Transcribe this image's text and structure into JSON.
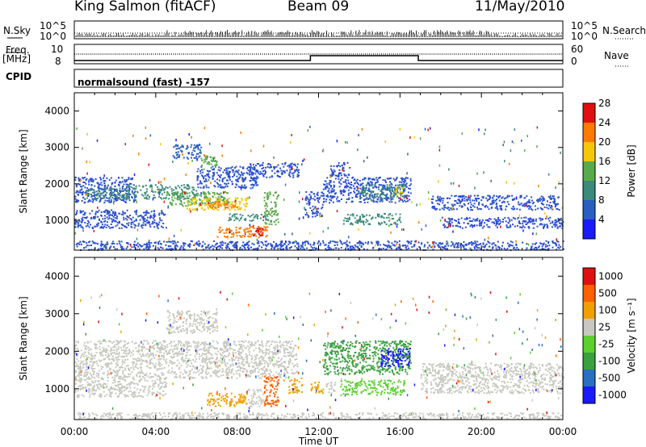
{
  "header": {
    "station": "King Salmon (fitACF)",
    "beam": "Beam 09",
    "date": "11/May/2010"
  },
  "top_panels": {
    "nsky_label": "N.Sky",
    "nsky_ticks": [
      "10^5",
      "10^0"
    ],
    "freq_label_1": "Freq.",
    "freq_label_2": "[MHz]",
    "freq_ticks": [
      "10",
      "8"
    ],
    "cpid_label": "CPID",
    "right_ticks_top": [
      "10^5",
      "10^0"
    ],
    "right_ticks_mid": [
      "60",
      "0"
    ],
    "nsearch_label": "N.Search",
    "nave_label": "Nave",
    "cpid_text": "normalsound (fast) -157",
    "freq_line": {
      "x": [
        0,
        11.6,
        11.6,
        16.9,
        16.9,
        24
      ],
      "levels": [
        "low",
        "low",
        "high",
        "high",
        "low",
        "low"
      ]
    }
  },
  "chart_data": [
    {
      "type": "heatmap",
      "title": "",
      "ylabel": "Slant Range [km]",
      "xlabel": "",
      "x_range": [
        0,
        24
      ],
      "ylim": [
        180,
        4500
      ],
      "yticks": [
        1000,
        2000,
        3000,
        4000
      ],
      "colorbar": {
        "label": "Power [dB]",
        "tick_labels": [
          "4",
          "8",
          "12",
          "16",
          "20",
          "24",
          "28"
        ],
        "colors": [
          "#1a1aff",
          "#2a5fc0",
          "#3b8a7a",
          "#5aaa4a",
          "#f5c60a",
          "#ff7a00",
          "#e01010"
        ]
      },
      "regions": [
        {
          "t0": 0.0,
          "t1": 3.0,
          "r0": 1500,
          "r1": 2200,
          "color": "#2a4fd0"
        },
        {
          "t0": 0.5,
          "t1": 2.5,
          "r0": 1600,
          "r1": 1900,
          "color": "#3b8a7a"
        },
        {
          "t0": 0.0,
          "t1": 4.5,
          "r0": 800,
          "r1": 1300,
          "color": "#2a4fd0"
        },
        {
          "t0": 2.5,
          "t1": 6.0,
          "r0": 1600,
          "r1": 2000,
          "color": "#3b8a7a"
        },
        {
          "t0": 4.5,
          "t1": 7.5,
          "r0": 1400,
          "r1": 1800,
          "color": "#5aaa4a"
        },
        {
          "t0": 5.5,
          "t1": 8.5,
          "r0": 1300,
          "r1": 1650,
          "color": "#f5c60a"
        },
        {
          "t0": 6.5,
          "t1": 8.0,
          "r0": 1350,
          "r1": 1550,
          "color": "#ff7a00"
        },
        {
          "t0": 6.0,
          "t1": 9.0,
          "r0": 1900,
          "r1": 2500,
          "color": "#2a4fd0"
        },
        {
          "t0": 4.8,
          "t1": 6.2,
          "r0": 2700,
          "r1": 3100,
          "color": "#2a5fc0"
        },
        {
          "t0": 6.2,
          "t1": 7.0,
          "r0": 2400,
          "r1": 2800,
          "color": "#5aaa4a"
        },
        {
          "t0": 8.5,
          "t1": 11.0,
          "r0": 2200,
          "r1": 2600,
          "color": "#2a4fd0"
        },
        {
          "t0": 7.5,
          "t1": 9.5,
          "r0": 1000,
          "r1": 1200,
          "color": "#3b8a7a"
        },
        {
          "t0": 7.0,
          "t1": 9.5,
          "r0": 550,
          "r1": 850,
          "color": "#ff7a00"
        },
        {
          "t0": 8.7,
          "t1": 9.3,
          "r0": 550,
          "r1": 800,
          "color": "#e01010"
        },
        {
          "t0": 9.3,
          "t1": 10.0,
          "r0": 900,
          "r1": 1800,
          "color": "#5aaa4a"
        },
        {
          "t0": 11.3,
          "t1": 12.2,
          "r0": 1100,
          "r1": 1800,
          "color": "#2a4fd0"
        },
        {
          "t0": 12.5,
          "t1": 13.5,
          "r0": 2200,
          "r1": 2600,
          "color": "#2a4fd0"
        },
        {
          "t0": 12.2,
          "t1": 16.5,
          "r0": 1500,
          "r1": 2200,
          "color": "#2a4fd0"
        },
        {
          "t0": 14.0,
          "t1": 16.2,
          "r0": 1600,
          "r1": 2000,
          "color": "#3b8a7a"
        },
        {
          "t0": 15.7,
          "t1": 16.1,
          "r0": 1700,
          "r1": 1950,
          "color": "#f5c60a"
        },
        {
          "t0": 13.2,
          "t1": 16.0,
          "r0": 900,
          "r1": 1200,
          "color": "#3b8a7a"
        },
        {
          "t0": 17.5,
          "t1": 23.8,
          "r0": 1300,
          "r1": 1700,
          "color": "#2a4fd0"
        },
        {
          "t0": 18.0,
          "t1": 24.0,
          "r0": 800,
          "r1": 1100,
          "color": "#2a4fd0"
        },
        {
          "t0": 0.0,
          "t1": 24.0,
          "r0": 200,
          "r1": 450,
          "color": "#2a4fd0"
        }
      ]
    },
    {
      "type": "heatmap",
      "title": "",
      "ylabel": "Slant Range [km]",
      "xlabel": "Time UT",
      "x_range": [
        0,
        24
      ],
      "xtick_labels": [
        "00:00",
        "04:00",
        "08:00",
        "12:00",
        "16:00",
        "20:00",
        "00:00"
      ],
      "ylim": [
        180,
        4500
      ],
      "yticks": [
        1000,
        2000,
        3000,
        4000
      ],
      "colorbar": {
        "label": "Velocity [m s⁻¹]",
        "tick_labels": [
          "1000",
          "500",
          "100",
          "25",
          "-25",
          "-100",
          "-500",
          "-1000"
        ],
        "colors": [
          "#1a1aff",
          "#2a6fc0",
          "#3aa040",
          "#5cd030",
          "#c8c8c0",
          "#f0a000",
          "#ff6000",
          "#e01010"
        ]
      },
      "regions": [
        {
          "t0": 0.0,
          "t1": 11.0,
          "r0": 1300,
          "r1": 2300,
          "color": "#c8c8c0"
        },
        {
          "t0": 0.0,
          "t1": 4.5,
          "r0": 800,
          "r1": 1300,
          "color": "#c8c8c0"
        },
        {
          "t0": 4.5,
          "t1": 7.0,
          "r0": 2500,
          "r1": 3100,
          "color": "#c8c8c0"
        },
        {
          "t0": 6.5,
          "t1": 8.5,
          "r0": 550,
          "r1": 900,
          "color": "#f0a000"
        },
        {
          "t0": 8.5,
          "t1": 9.3,
          "r0": 550,
          "r1": 1000,
          "color": "#c8c8c0"
        },
        {
          "t0": 9.3,
          "t1": 10.0,
          "r0": 550,
          "r1": 1400,
          "color": "#ff6000"
        },
        {
          "t0": 10.5,
          "t1": 11.2,
          "r0": 900,
          "r1": 1300,
          "color": "#f0a000"
        },
        {
          "t0": 11.6,
          "t1": 12.3,
          "r0": 900,
          "r1": 1200,
          "color": "#f0a000"
        },
        {
          "t0": 12.3,
          "t1": 12.8,
          "r0": 900,
          "r1": 1200,
          "color": "#c8c8c0"
        },
        {
          "t0": 13.0,
          "t1": 16.2,
          "r0": 850,
          "r1": 1250,
          "color": "#5cd030"
        },
        {
          "t0": 12.2,
          "t1": 16.5,
          "r0": 1400,
          "r1": 2300,
          "color": "#3aa040"
        },
        {
          "t0": 15.0,
          "t1": 16.5,
          "r0": 1600,
          "r1": 2100,
          "color": "#1a1aff"
        },
        {
          "t0": 17.0,
          "t1": 24.0,
          "r0": 900,
          "r1": 1700,
          "color": "#c8c8c0"
        },
        {
          "t0": 0.0,
          "t1": 24.0,
          "r0": 200,
          "r1": 380,
          "color": "#c8c8c0"
        }
      ]
    }
  ]
}
